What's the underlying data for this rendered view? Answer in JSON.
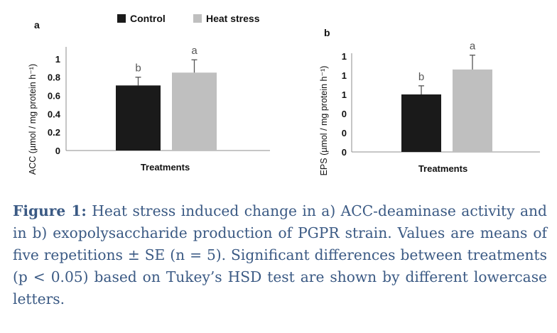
{
  "legend": [
    {
      "label": "Control",
      "color": "#1a1a1a"
    },
    {
      "label": "Heat stress",
      "color": "#bfbfbf"
    }
  ],
  "chart_data": [
    {
      "type": "bar",
      "panel_label": "a",
      "categories": [
        "Control",
        "Heat stress"
      ],
      "values": [
        0.71,
        0.85
      ],
      "errors": [
        0.09,
        0.14
      ],
      "significance_letters": [
        "b",
        "a"
      ],
      "xlabel": "Treatments",
      "ylabel": "ACC (µmol / mg protein h⁻¹)",
      "ylim": [
        0,
        1.1
      ],
      "ytick_labels": [
        "0",
        "0.2",
        "0.4",
        "0.6",
        "0.8",
        "1"
      ],
      "ytick_values": [
        0,
        0.2,
        0.4,
        0.6,
        0.8,
        1.0
      ],
      "colors": [
        "#1a1a1a",
        "#bfbfbf"
      ],
      "grid": false
    },
    {
      "type": "bar",
      "panel_label": "b",
      "categories": [
        "Control",
        "Heat stress"
      ],
      "values": [
        0.6,
        0.86
      ],
      "errors": [
        0.09,
        0.15
      ],
      "significance_letters": [
        "b",
        "a"
      ],
      "xlabel": "Treatments",
      "ylabel": "EPS (µmol / mg protein h⁻¹)",
      "ylim": [
        0,
        1.0
      ],
      "ytick_labels": [
        "0",
        "0",
        "0",
        "1",
        "1",
        "1"
      ],
      "ytick_values": [
        0,
        0.2,
        0.4,
        0.6,
        0.8,
        1.0
      ],
      "colors": [
        "#1a1a1a",
        "#bfbfbf"
      ],
      "grid": false
    }
  ],
  "caption": {
    "label": "Figure 1:",
    "text": " Heat stress induced change in a) ACC-deaminase activity and in b) exopolysaccharide production of PGPR strain. Values are means of five repetitions ± SE (n = 5). Significant differences between treatments (p < 0.05) based on Tukey’s HSD test are shown by different lowercase letters."
  }
}
